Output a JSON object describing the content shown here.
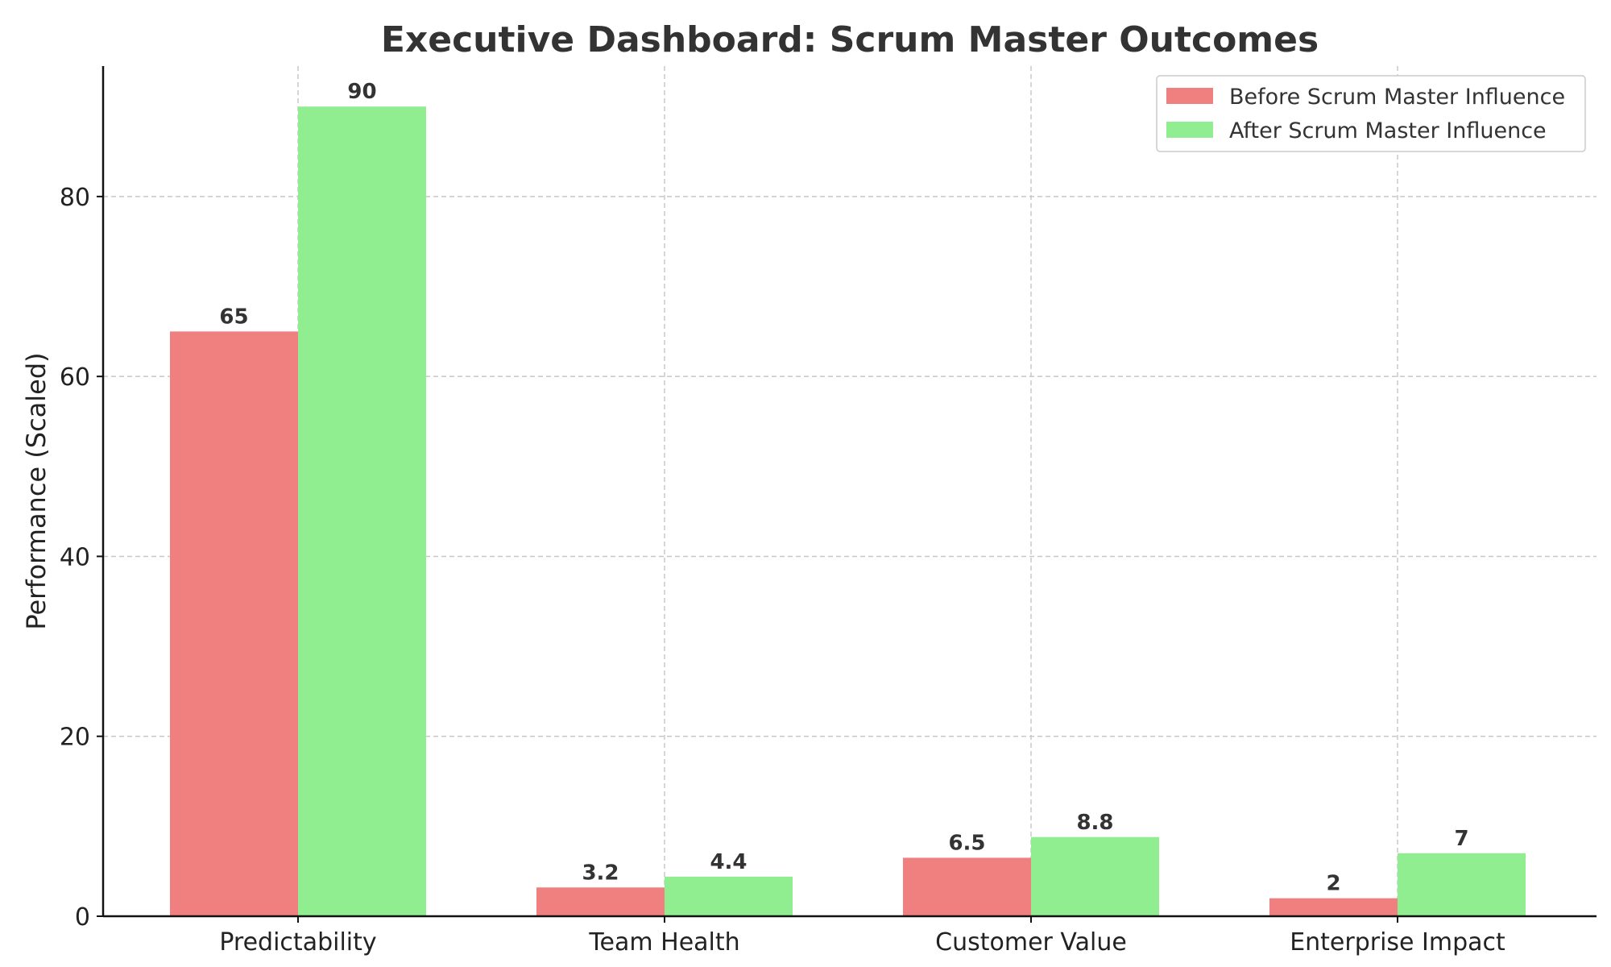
{
  "chart_data": {
    "type": "bar",
    "title": "Executive Dashboard: Scrum Master Outcomes",
    "xlabel": "",
    "ylabel": "Performance (Scaled)",
    "ylim": [
      0,
      94.5
    ],
    "yticks": [
      0,
      20,
      40,
      60,
      80
    ],
    "categories": [
      "Predictability",
      "Team Health",
      "Customer Value",
      "Enterprise Impact"
    ],
    "series": [
      {
        "name": "Before Scrum Master Influence",
        "color": "#f08080",
        "values": [
          65,
          3.2,
          6.5,
          2
        ],
        "labels": [
          "65",
          "3.2",
          "6.5",
          "2"
        ]
      },
      {
        "name": "After Scrum Master Influence",
        "color": "#90ee90",
        "values": [
          90,
          4.4,
          8.8,
          7
        ],
        "labels": [
          "90",
          "4.4",
          "8.8",
          "7"
        ]
      }
    ],
    "grid": true,
    "legend_position": "top-right"
  }
}
